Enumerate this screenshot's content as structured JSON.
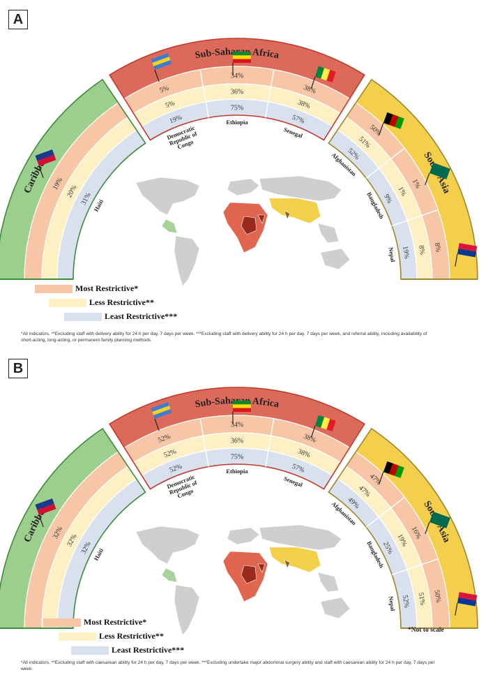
{
  "panels": [
    {
      "label": "A",
      "regions": {
        "caribbean": "Caribbean",
        "ssa": "Sub-Saharan Africa",
        "southasia": "South Asia"
      },
      "countries": [
        {
          "name": "Haiti",
          "most": "19%",
          "less": "20%",
          "least": "31%"
        },
        {
          "name": "Democratic Republic of Congo",
          "name_lines": [
            "Democratic",
            "Republic of",
            "Congo"
          ],
          "most": "5%",
          "less": "5%",
          "least": "19%"
        },
        {
          "name": "Ethiopia",
          "most": "34%",
          "less": "36%",
          "least": "75%"
        },
        {
          "name": "Senegal",
          "most": "38%",
          "less": "38%",
          "least": "57%"
        },
        {
          "name": "Afghanistan",
          "most": "50%",
          "less": "51%",
          "least": "52%"
        },
        {
          "name": "Bangladesh",
          "most": "1%",
          "less": "1%",
          "least": "9%"
        },
        {
          "name": "Nepal",
          "most": "8%",
          "less": "8%",
          "least": "19%"
        }
      ],
      "legend": {
        "most": "Most Restrictive*",
        "less": "Less Restrictive**",
        "least": "Least Restrictive***"
      },
      "footnote": "*All indicators. **Excluding staff with delivery ability for 24 h per day, 7 days per week. ***Excluding staff with delivery ability for 24 h per day, 7 days per week, and referral ability, including availability of short-acting, long-acting, or permanent family planning methods."
    },
    {
      "label": "B",
      "regions": {
        "caribbean": "Caribbean",
        "ssa": "Sub-Saharan Africa",
        "southasia": "South Asia"
      },
      "countries": [
        {
          "name": "Haiti",
          "most": "32%",
          "less": "32%",
          "least": "32%"
        },
        {
          "name": "Democratic Republic of Congo",
          "name_lines": [
            "Democratic",
            "Republic of",
            "Congo"
          ],
          "most": "52%",
          "less": "52%",
          "least": "52%"
        },
        {
          "name": "Ethiopia",
          "most": "34%",
          "less": "36%",
          "least": "75%"
        },
        {
          "name": "Senegal",
          "most": "38%",
          "less": "38%",
          "least": "57%"
        },
        {
          "name": "Afghanistan",
          "most": "47%",
          "less": "47%",
          "least": "49%"
        },
        {
          "name": "Bangladesh",
          "most": "16%",
          "less": "19%",
          "least": "25%"
        },
        {
          "name": "Nepal",
          "most": "50%",
          "less": "51%",
          "least": "52%"
        }
      ],
      "legend": {
        "most": "Most Restrictive*",
        "less": "Less Restrictive**",
        "least": "Least Restrictive***"
      },
      "scale_note": "*Not to scale",
      "footnote": "*All indicators. **Excluding staff with caesarean ability for 24 h per day, 7 days per week. ***Excluding undertake major abdominal surgery ability and staff with caesarean ability for 24 h per day, 7 days per week."
    }
  ],
  "colors": {
    "caribbean": "#9ccf8e",
    "caribbean_line": "#3e8b3a",
    "ssa": "#dc6a5a",
    "ssa_line": "#c0392b",
    "southasia": "#f3cf4c",
    "southasia_line": "#a0862c",
    "most": "#f6c6a6",
    "less": "#fdf0c5",
    "least": "#d9e0ee",
    "map_land": "#cfcfcf",
    "map_ssa": "#e0664f",
    "map_ssa_dark": "#9b2a1e",
    "map_carib": "#a6d39a",
    "map_sa": "#f2d049",
    "map_sa_dark": "#8c6420"
  }
}
